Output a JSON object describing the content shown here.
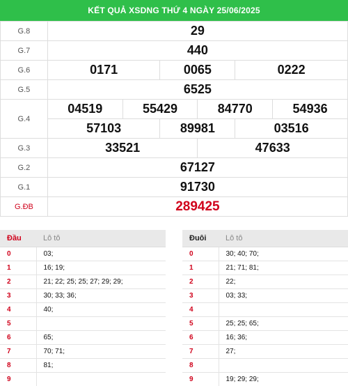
{
  "header": {
    "title": "KẾT QUẢ XSDNG THỨ 4 NGÀY 25/06/2025"
  },
  "prizes": {
    "g8": {
      "label": "G.8",
      "numbers": [
        "29"
      ]
    },
    "g7": {
      "label": "G.7",
      "numbers": [
        "440"
      ]
    },
    "g6": {
      "label": "G.6",
      "numbers": [
        "0171",
        "0065",
        "0222"
      ]
    },
    "g5": {
      "label": "G.5",
      "numbers": [
        "6525"
      ]
    },
    "g4": {
      "label": "G.4",
      "numbers": [
        "04519",
        "55429",
        "84770",
        "54936",
        "57103",
        "89981",
        "03516"
      ]
    },
    "g3": {
      "label": "G.3",
      "numbers": [
        "33521",
        "47633"
      ]
    },
    "g2": {
      "label": "G.2",
      "numbers": [
        "67127"
      ]
    },
    "g1": {
      "label": "G.1",
      "numbers": [
        "91730"
      ]
    },
    "gdb": {
      "label": "G.ĐB",
      "numbers": [
        "289425"
      ]
    }
  },
  "loto_dau": {
    "col1": "Đầu",
    "col2": "Lô tô",
    "rows": [
      {
        "k": "0",
        "v": "03;"
      },
      {
        "k": "1",
        "v": "16; 19;"
      },
      {
        "k": "2",
        "v": "21; 22; 25; 25; 27; 29; 29;"
      },
      {
        "k": "3",
        "v": "30; 33; 36;"
      },
      {
        "k": "4",
        "v": "40;"
      },
      {
        "k": "5",
        "v": ""
      },
      {
        "k": "6",
        "v": "65;"
      },
      {
        "k": "7",
        "v": "70; 71;"
      },
      {
        "k": "8",
        "v": "81;"
      },
      {
        "k": "9",
        "v": ""
      }
    ]
  },
  "loto_duoi": {
    "col1": "Đuôi",
    "col2": "Lô tô",
    "rows": [
      {
        "k": "0",
        "v": "30; 40; 70;"
      },
      {
        "k": "1",
        "v": "21; 71; 81;"
      },
      {
        "k": "2",
        "v": "22;"
      },
      {
        "k": "3",
        "v": "03; 33;"
      },
      {
        "k": "4",
        "v": ""
      },
      {
        "k": "5",
        "v": "25; 25; 65;"
      },
      {
        "k": "6",
        "v": "16; 36;"
      },
      {
        "k": "7",
        "v": "27;"
      },
      {
        "k": "8",
        "v": ""
      },
      {
        "k": "9",
        "v": "19; 29; 29;"
      }
    ]
  }
}
